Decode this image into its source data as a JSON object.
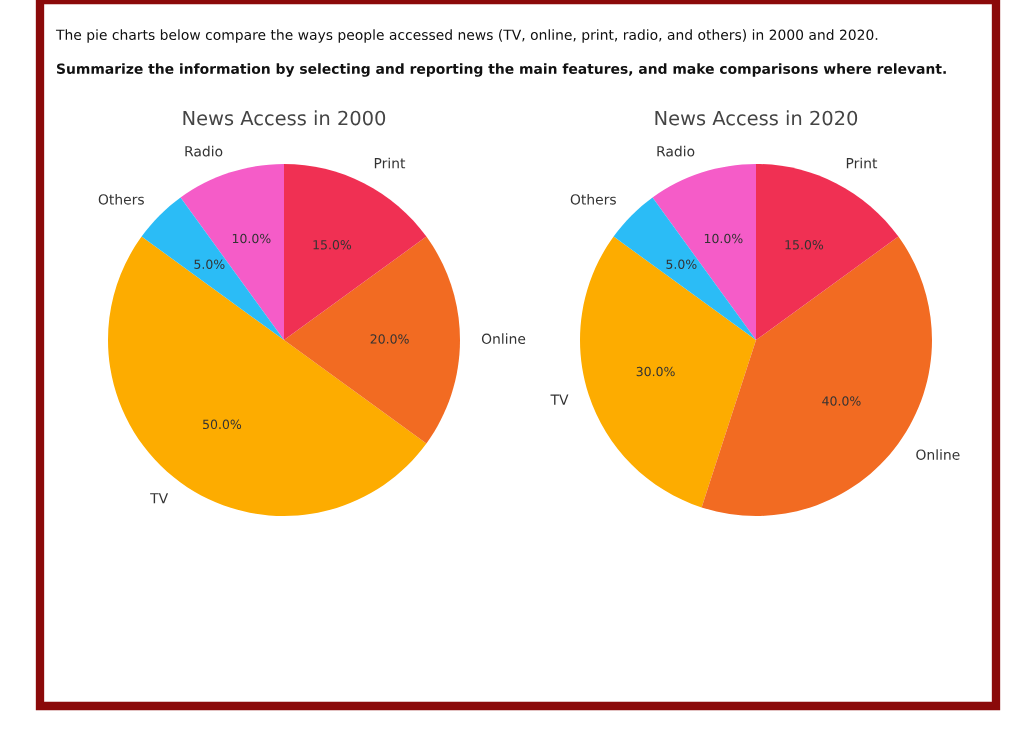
{
  "chart_data": [
    {
      "type": "pie",
      "title": "News Access in 2000",
      "categories": [
        "TV",
        "Online",
        "Print",
        "Radio",
        "Others"
      ],
      "values": [
        50,
        20,
        15,
        10,
        5
      ],
      "colors": [
        "#fdac00",
        "#f26b22",
        "#f03053",
        "#f55cc8",
        "#2bbcf6"
      ],
      "value_labels": [
        "50.0%",
        "20.0%",
        "15.0%",
        "10.0%",
        "5.0%"
      ],
      "annotations": [
        "The pie charts below compare the ways people accessed news (TV, online, print, radio, and others) in 2000 and 2020.",
        "Summarize the information by selecting and reporting the main features, and make comparisons where relevant."
      ]
    },
    {
      "type": "pie",
      "title": "News Access in 2020",
      "categories": [
        "TV",
        "Online",
        "Print",
        "Radio",
        "Others"
      ],
      "values": [
        30,
        40,
        15,
        10,
        5
      ],
      "colors": [
        "#fdac00",
        "#f26b22",
        "#f03053",
        "#f55cc8",
        "#2bbcf6"
      ],
      "value_labels": [
        "30.0%",
        "40.0%",
        "15.0%",
        "10.0%",
        "5.0%"
      ]
    }
  ]
}
